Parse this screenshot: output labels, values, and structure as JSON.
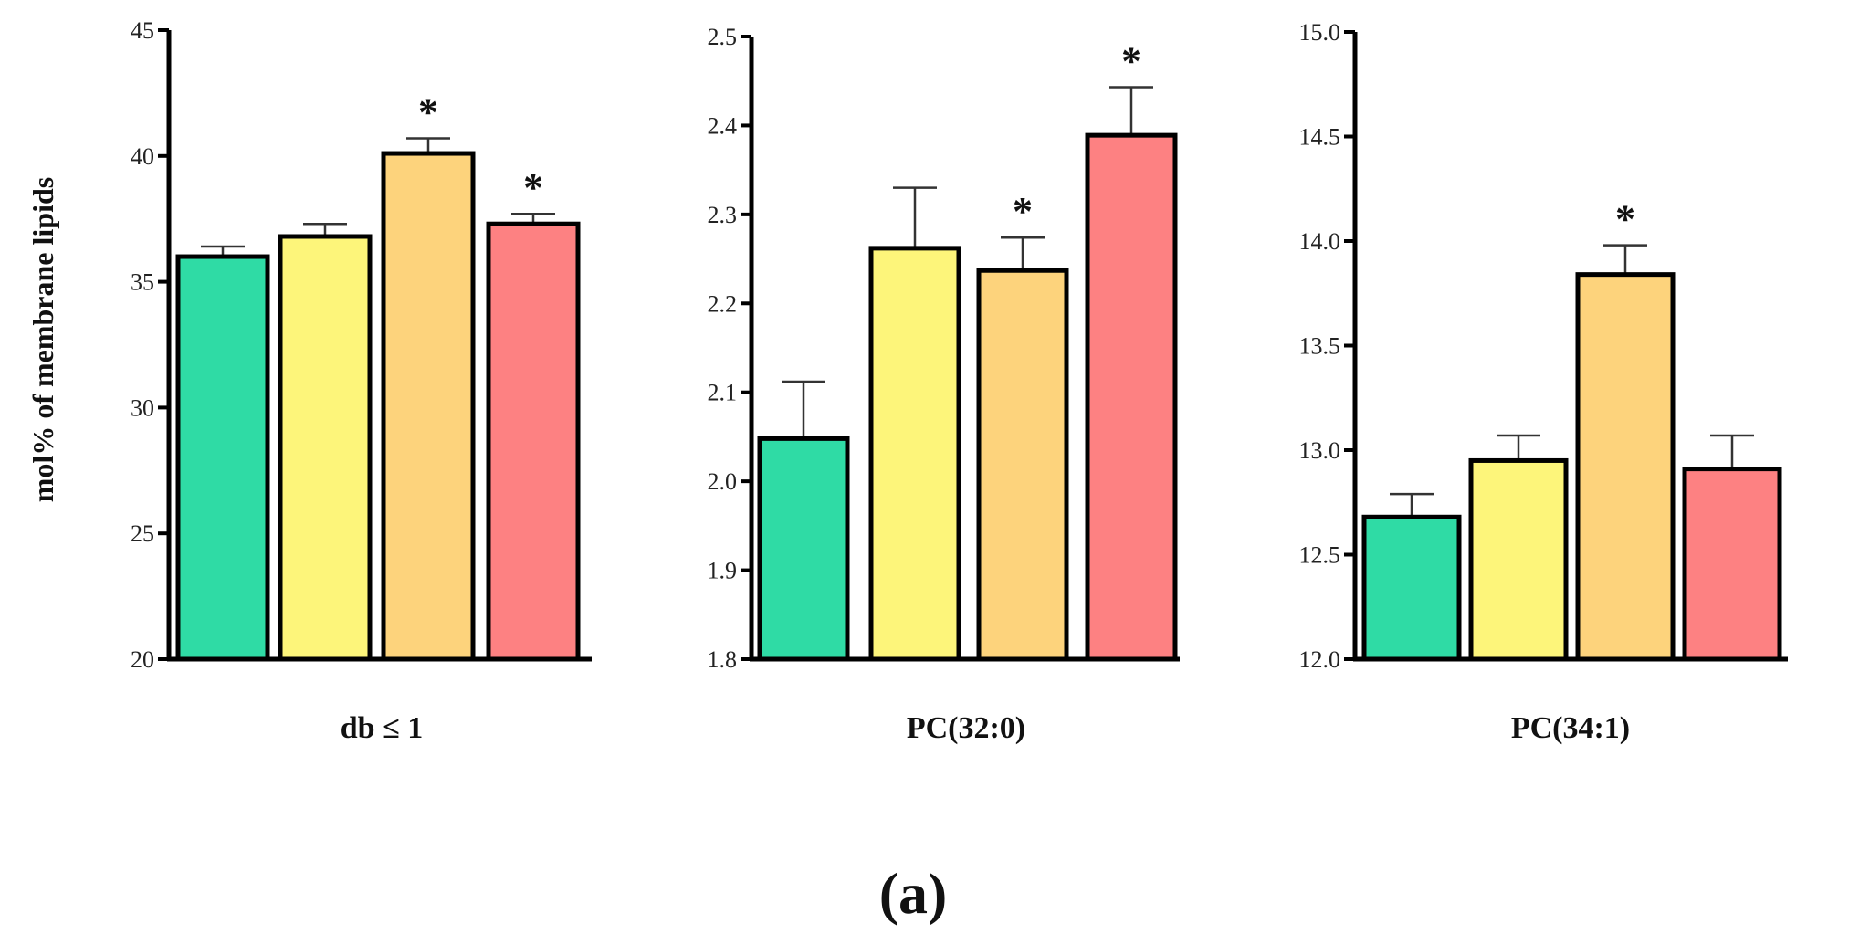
{
  "figure": {
    "panel_label": "(a)",
    "ylabel": "mol% of membrane lipids"
  },
  "chart_data": [
    {
      "type": "bar",
      "title": "",
      "xlabel": "db ≤ 1",
      "ylabel": "mol% of membrane lipids",
      "ylim": [
        20,
        45
      ],
      "yticks": [
        20,
        25,
        30,
        35,
        40,
        45
      ],
      "ytick_labels": [
        "20",
        "25",
        "30",
        "35",
        "40",
        "45"
      ],
      "values": [
        36.0,
        36.8,
        40.1,
        37.3
      ],
      "errors": [
        0.4,
        0.5,
        0.6,
        0.4
      ],
      "significant": [
        false,
        false,
        true,
        true
      ],
      "significance_marker": "*",
      "colors": [
        "#2fdba5",
        "#fdf57a",
        "#fdd37c",
        "#fd8182"
      ]
    },
    {
      "type": "bar",
      "title": "",
      "xlabel": "PC(32:0)",
      "ylabel": "",
      "ylim": [
        1.8,
        2.5
      ],
      "yticks": [
        1.8,
        1.9,
        2.0,
        2.1,
        2.2,
        2.3,
        2.4,
        2.5
      ],
      "ytick_labels": [
        "1.8",
        "1.9",
        "2.0",
        "2.1",
        "2.2",
        "2.3",
        "2.4",
        "2.5"
      ],
      "values": [
        2.048,
        2.262,
        2.237,
        2.389
      ],
      "errors": [
        0.064,
        0.068,
        0.037,
        0.054
      ],
      "significant": [
        false,
        false,
        true,
        true
      ],
      "significance_marker": "*",
      "colors": [
        "#2fdba5",
        "#fdf57a",
        "#fdd37c",
        "#fd8182"
      ]
    },
    {
      "type": "bar",
      "title": "",
      "xlabel": "PC(34:1)",
      "ylabel": "",
      "ylim": [
        12.0,
        15.0
      ],
      "yticks": [
        12.0,
        12.5,
        13.0,
        13.5,
        14.0,
        14.5,
        15.0
      ],
      "ytick_labels": [
        "12.0",
        "12.5",
        "13.0",
        "13.5",
        "14.0",
        "14.5",
        "15.0"
      ],
      "values": [
        12.68,
        12.95,
        13.84,
        12.91
      ],
      "errors": [
        0.11,
        0.12,
        0.14,
        0.16
      ],
      "significant": [
        false,
        false,
        true,
        false
      ],
      "significance_marker": "*",
      "colors": [
        "#2fdba5",
        "#fdf57a",
        "#fdd37c",
        "#fd8182"
      ]
    }
  ]
}
